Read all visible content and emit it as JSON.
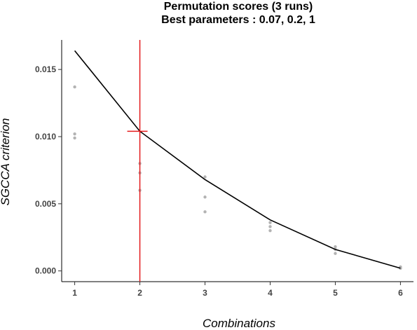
{
  "chart_data": {
    "type": "line",
    "title": "Permutation scores (3 runs)",
    "subtitle": "Best parameters : 0.07, 0.2, 1",
    "xlabel": "Combinations",
    "ylabel": "SGCCA criterion",
    "x_ticks": [
      1,
      2,
      3,
      4,
      5,
      6
    ],
    "y_ticks": [
      "0.000",
      "0.005",
      "0.010",
      "0.015"
    ],
    "xlim": [
      0.8,
      6.2
    ],
    "ylim": [
      -0.0008,
      0.0172
    ],
    "grid": false,
    "series": [
      {
        "x": [
          1,
          2,
          3,
          4,
          5,
          6
        ],
        "y": [
          0.0164,
          0.0104,
          0.0068,
          0.0038,
          0.0016,
          0.0002
        ],
        "color": "#000000"
      }
    ],
    "permutation_points": {
      "color": "#b3b3b3",
      "x": [
        1,
        1,
        1,
        2,
        2,
        2,
        3,
        3,
        3,
        4,
        4,
        4,
        5,
        5,
        5,
        6,
        6,
        6
      ],
      "y": [
        0.0137,
        0.0102,
        0.0099,
        0.008,
        0.0073,
        0.006,
        0.007,
        0.0055,
        0.0044,
        0.0036,
        0.0033,
        0.003,
        0.0018,
        0.0016,
        0.0013,
        0.0003,
        0.0002,
        0.0002
      ]
    },
    "best": {
      "x": 2,
      "y": 0.0104,
      "color": "#e41a1c"
    }
  }
}
